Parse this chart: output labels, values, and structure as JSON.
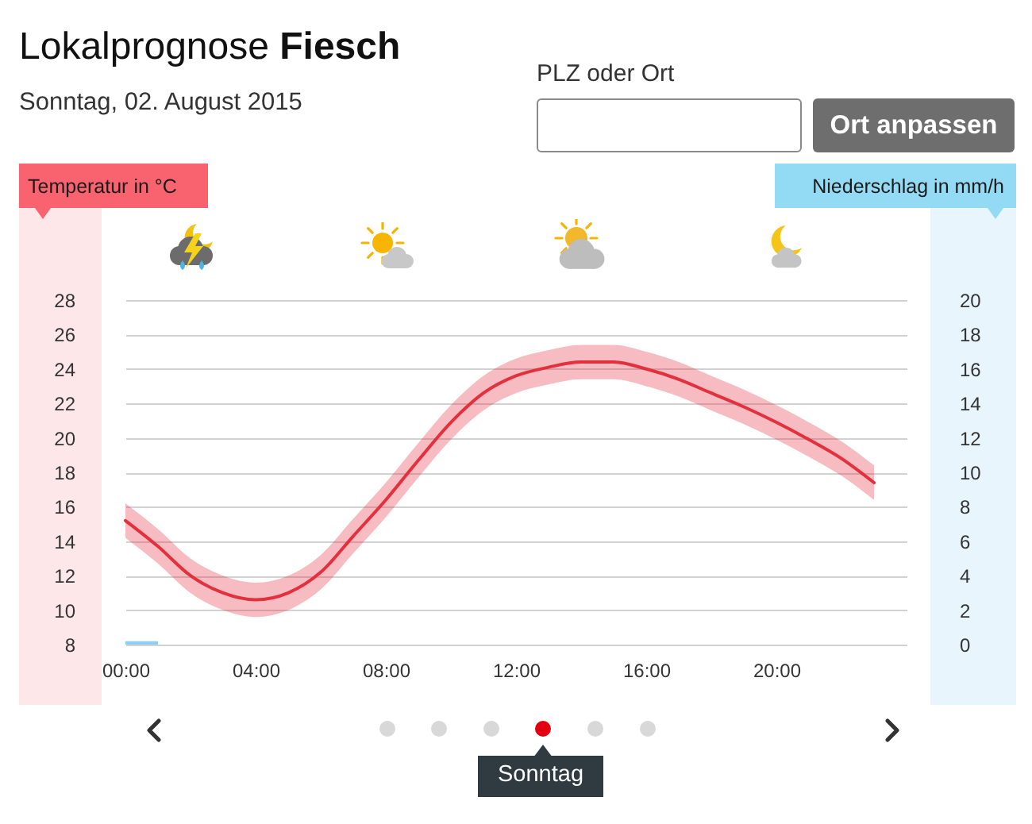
{
  "chart_data": {
    "type": "line",
    "title": "Lokalprognose Fiesch",
    "subtitle": "Sonntag, 02. August 2015",
    "ylabel": "Temperatur in °C",
    "y2label": "Niederschlag in mm/h",
    "annotations": [
      "PLZ oder Ort",
      "Ort anpassen",
      "Sonntag"
    ],
    "x": [
      0,
      1,
      2,
      3,
      4,
      5,
      6,
      7,
      8,
      9,
      10,
      11,
      12,
      13,
      14,
      15,
      16,
      17,
      18,
      19,
      20,
      21,
      22,
      23
    ],
    "series": [
      {
        "color": "#e4303d",
        "values": [
          15.2,
          13.7,
          12.0,
          11.0,
          10.6,
          11.0,
          12.2,
          14.3,
          16.4,
          18.7,
          20.9,
          22.6,
          23.6,
          24.1,
          24.4,
          24.4,
          24.0,
          23.4,
          22.6,
          21.8,
          20.9,
          19.9,
          18.8,
          17.4
        ],
        "lower": [
          14.2,
          12.7,
          11.0,
          10.0,
          9.6,
          10.0,
          11.2,
          13.3,
          15.4,
          17.7,
          19.9,
          21.6,
          22.6,
          23.1,
          23.4,
          23.4,
          23.0,
          22.4,
          21.6,
          20.8,
          19.9,
          18.9,
          17.8,
          16.4
        ],
        "upper": [
          16.2,
          14.7,
          13.0,
          12.0,
          11.6,
          12.0,
          13.2,
          15.3,
          17.4,
          19.7,
          21.9,
          23.6,
          24.6,
          25.1,
          25.4,
          25.4,
          25.0,
          24.4,
          23.6,
          22.8,
          21.9,
          20.9,
          19.8,
          18.4
        ]
      },
      {
        "type": "bar",
        "axis": "y2",
        "color": "#8ccff0",
        "x": [
          0.5
        ],
        "values": [
          0.2
        ]
      }
    ],
    "xlim": [
      0,
      24
    ],
    "xticks": [
      {
        "value": 0,
        "label": "00:00"
      },
      {
        "value": 4,
        "label": "04:00"
      },
      {
        "value": 8,
        "label": "08:00"
      },
      {
        "value": 12,
        "label": "12:00"
      },
      {
        "value": 16,
        "label": "16:00"
      },
      {
        "value": 20,
        "label": "20:00"
      }
    ],
    "ylim": [
      8,
      28
    ],
    "yticks": [
      8,
      10,
      12,
      14,
      16,
      18,
      20,
      22,
      24,
      26,
      28
    ],
    "y2lim": [
      0,
      20
    ],
    "y2ticks": [
      0,
      2,
      4,
      6,
      8,
      10,
      12,
      14,
      16,
      18,
      20
    ],
    "grid": "y",
    "line_style": "solid"
  }
}
